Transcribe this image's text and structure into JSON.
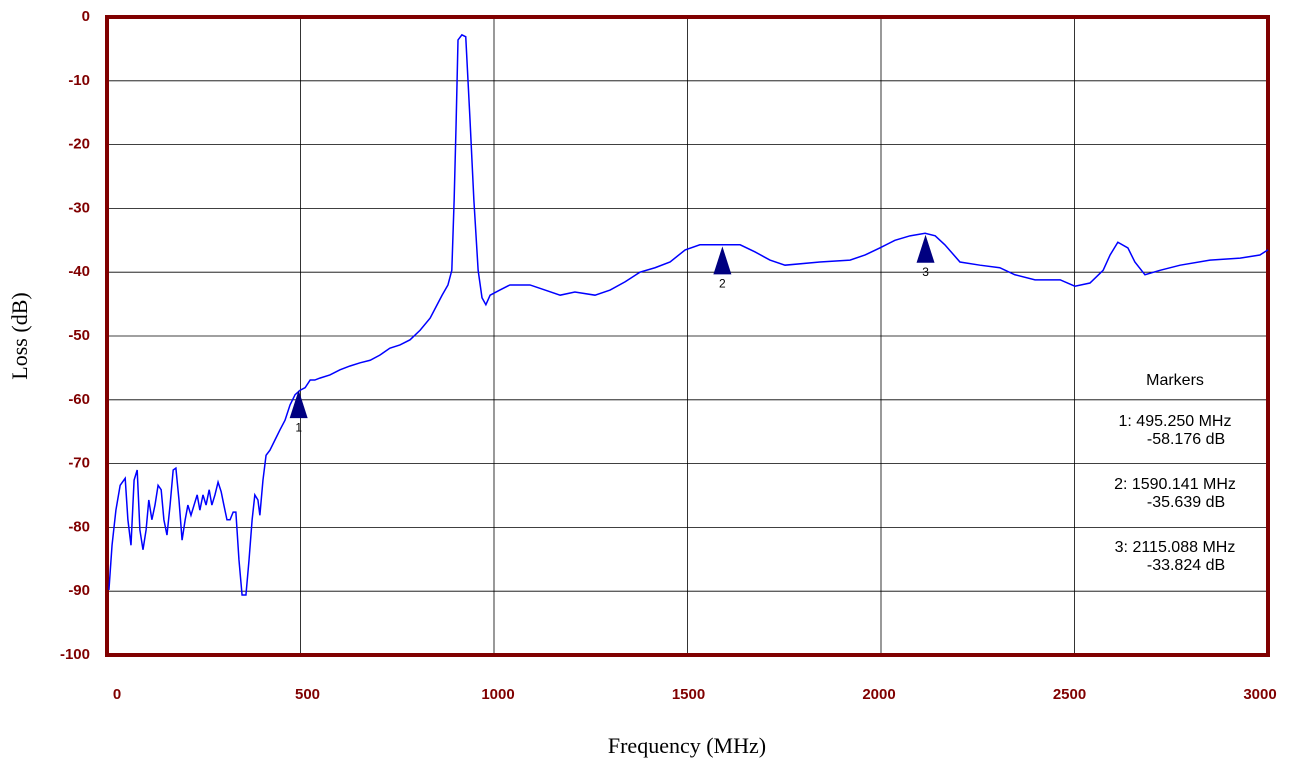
{
  "chart_data": {
    "type": "line",
    "xlabel": "Frequency (MHz)",
    "ylabel": "Loss (dB)",
    "xlim": [
      0,
      3000
    ],
    "ylim": [
      -100,
      0
    ],
    "xticks": [
      0,
      500,
      1000,
      1500,
      2000,
      2500,
      3000
    ],
    "yticks": [
      0,
      -10,
      -20,
      -30,
      -40,
      -50,
      -60,
      -70,
      -80,
      -90,
      -100
    ],
    "grid": true,
    "background": "#ffcc99",
    "frame_color": "#800000",
    "series": [
      {
        "color": "#0000ff",
        "x": [
          5,
          13,
          23,
          34,
          47,
          54,
          62,
          70,
          78,
          85,
          93,
          101,
          108,
          116,
          124,
          132,
          140,
          147,
          155,
          163,
          171,
          178,
          186,
          194,
          202,
          209,
          217,
          225,
          233,
          240,
          248,
          256,
          264,
          271,
          279,
          287,
          295,
          302,
          310,
          318,
          326,
          333,
          341,
          349,
          359,
          367,
          375,
          382,
          390,
          395,
          403,
          411,
          421,
          434,
          447,
          460,
          473,
          486,
          499,
          512,
          525,
          537,
          550,
          576,
          602,
          628,
          654,
          680,
          705,
          731,
          757,
          783,
          809,
          835,
          853,
          866,
          881,
          891,
          897,
          902,
          907,
          917,
          927,
          938,
          948,
          959,
          969,
          979,
          990,
          1015,
          1041,
          1093,
          1132,
          1171,
          1209,
          1261,
          1300,
          1339,
          1377,
          1416,
          1455,
          1494,
          1532,
          1636,
          1674,
          1713,
          1752,
          1842,
          1920,
          1959,
          1997,
          2036,
          2075,
          2114,
          2140,
          2165,
          2204,
          2256,
          2307,
          2346,
          2398,
          2463,
          2501,
          2540,
          2574,
          2592,
          2612,
          2638,
          2656,
          2682,
          2721,
          2773,
          2850,
          2928,
          2979,
          3000
        ],
        "values": [
          -89.8,
          -82.8,
          -77.3,
          -73.4,
          -72.3,
          -78.8,
          -82.8,
          -72.6,
          -71,
          -80.4,
          -83.5,
          -80.4,
          -75.7,
          -78.8,
          -76.5,
          -73.4,
          -74.1,
          -78.8,
          -81.2,
          -76.5,
          -71,
          -70.7,
          -75.7,
          -82,
          -78.8,
          -76.5,
          -78.1,
          -76.5,
          -74.9,
          -77.3,
          -74.9,
          -76.5,
          -74.1,
          -76.5,
          -74.9,
          -72.9,
          -74.4,
          -76.5,
          -78.8,
          -78.8,
          -77.6,
          -77.6,
          -85.1,
          -90.6,
          -90.6,
          -85.1,
          -78.8,
          -74.9,
          -75.7,
          -78.1,
          -72.6,
          -68.7,
          -67.9,
          -66.3,
          -64.7,
          -63.2,
          -60.8,
          -59.2,
          -58.5,
          -58.1,
          -56.9,
          -56.9,
          -56.6,
          -56.1,
          -55.3,
          -54.7,
          -54.2,
          -53.8,
          -53,
          -51.9,
          -51.4,
          -50.6,
          -49.1,
          -47.2,
          -45.1,
          -43.6,
          -42,
          -39.7,
          -28.7,
          -16.9,
          -3.6,
          -2.8,
          -3.1,
          -16.1,
          -28.7,
          -39.7,
          -44,
          -45.1,
          -43.6,
          -42.8,
          -42,
          -42,
          -42.8,
          -43.6,
          -43.1,
          -43.6,
          -42.8,
          -41.5,
          -40,
          -39.3,
          -38.4,
          -36.5,
          -35.7,
          -35.7,
          -36.8,
          -38.1,
          -38.9,
          -38.4,
          -38.1,
          -37.3,
          -36.2,
          -35,
          -34.3,
          -33.9,
          -34.3,
          -35.7,
          -38.4,
          -38.9,
          -39.3,
          -40.4,
          -41.2,
          -41.2,
          -42.2,
          -41.7,
          -39.7,
          -37.3,
          -35.3,
          -36.2,
          -38.4,
          -40.4,
          -39.7,
          -38.9,
          -38.1,
          -37.8,
          -37.3,
          -36.5
        ]
      }
    ],
    "markers_title": "Markers",
    "marker_color": "#000080",
    "markers": [
      {
        "label": "1",
        "x": 495.25,
        "y": -58.176,
        "x_label": "1: 495.250 MHz",
        "y_label": "-58.176 dB"
      },
      {
        "label": "2",
        "x": 1590.141,
        "y": -35.639,
        "x_label": "2: 1590.141 MHz",
        "y_label": "-35.639 dB"
      },
      {
        "label": "3",
        "x": 2115.088,
        "y": -33.824,
        "x_label": "3: 2115.088 MHz",
        "y_label": "-33.824 dB"
      }
    ]
  }
}
